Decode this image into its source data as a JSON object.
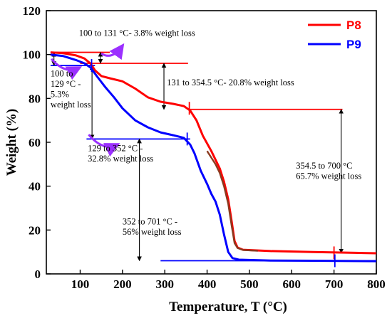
{
  "chart_data": {
    "type": "line",
    "xlabel": "Temperature, T (°C)",
    "ylabel": "Weight (%)",
    "xlim": [
      20,
      800
    ],
    "ylim": [
      0,
      120
    ],
    "xticks": [
      "100",
      "200",
      "300",
      "400",
      "500",
      "600",
      "700",
      "800"
    ],
    "yticks": [
      "0",
      "20",
      "40",
      "60",
      "80",
      "100",
      "120"
    ],
    "grid": false,
    "legend_position": "top-right",
    "series": [
      {
        "name": "P8",
        "color": "#ff0000",
        "points": [
          [
            30,
            101
          ],
          [
            60,
            100.6
          ],
          [
            90,
            99.6
          ],
          [
            110,
            98.2
          ],
          [
            125,
            95.8
          ],
          [
            135,
            92.8
          ],
          [
            150,
            90.2
          ],
          [
            170,
            89.2
          ],
          [
            200,
            87.8
          ],
          [
            230,
            84.5
          ],
          [
            260,
            80.5
          ],
          [
            290,
            78.5
          ],
          [
            320,
            77.5
          ],
          [
            345,
            76.5
          ],
          [
            360,
            74.5
          ],
          [
            375,
            70
          ],
          [
            390,
            63
          ],
          [
            410,
            56
          ],
          [
            430,
            48
          ],
          [
            440,
            42
          ],
          [
            450,
            34
          ],
          [
            458,
            24
          ],
          [
            465,
            15
          ],
          [
            472,
            12
          ],
          [
            485,
            11
          ],
          [
            550,
            10.4
          ],
          [
            650,
            10
          ],
          [
            750,
            9.6
          ],
          [
            800,
            9.4
          ]
        ]
      },
      {
        "name": "P9",
        "color": "#0000ff",
        "points": [
          [
            30,
            100
          ],
          [
            60,
            99.3
          ],
          [
            90,
            97.5
          ],
          [
            110,
            96
          ],
          [
            125,
            94
          ],
          [
            140,
            90
          ],
          [
            160,
            85
          ],
          [
            180,
            80.5
          ],
          [
            200,
            75.5
          ],
          [
            230,
            70
          ],
          [
            260,
            66.8
          ],
          [
            290,
            64.5
          ],
          [
            320,
            63.2
          ],
          [
            345,
            62
          ],
          [
            360,
            59
          ],
          [
            370,
            55
          ],
          [
            385,
            47
          ],
          [
            400,
            41
          ],
          [
            410,
            36.5
          ],
          [
            420,
            33
          ],
          [
            430,
            27
          ],
          [
            440,
            18
          ],
          [
            450,
            10
          ],
          [
            460,
            7.2
          ],
          [
            475,
            6.5
          ],
          [
            550,
            6.1
          ],
          [
            650,
            6
          ],
          [
            800,
            5.8
          ]
        ]
      }
    ],
    "brown_overlay": {
      "color": "#8b3a1f",
      "points": [
        [
          400,
          56
        ],
        [
          410,
          53
        ],
        [
          420,
          50
        ],
        [
          430,
          46
        ],
        [
          440,
          40
        ],
        [
          450,
          32
        ],
        [
          458,
          22
        ],
        [
          465,
          14
        ],
        [
          472,
          11.8
        ],
        [
          485,
          10.9
        ],
        [
          520,
          10.5
        ]
      ]
    },
    "reference_lines": [
      {
        "color": "#ff0000",
        "x1": 30,
        "x2": 170,
        "y": 101
      },
      {
        "color": "#ff0000",
        "x1": 100,
        "x2": 355,
        "y": 96
      },
      {
        "color": "#ff0000",
        "x1": 355,
        "x2": 720,
        "y": 75
      },
      {
        "color": "#0000ff",
        "x1": 30,
        "x2": 135,
        "y": 95
      },
      {
        "color": "#0000ff",
        "x1": 115,
        "x2": 360,
        "y": 61.5
      },
      {
        "color": "#0000ff",
        "x1": 290,
        "x2": 800,
        "y": 6
      }
    ],
    "step_markers": [
      {
        "color": "#ff0000",
        "x": 358,
        "y": 75.5
      },
      {
        "color": "#0000ff",
        "x": 127,
        "y": 95
      },
      {
        "color": "#0000ff",
        "x": 353,
        "y": 61.5
      },
      {
        "color": "#ff0000",
        "x": 700,
        "y": 9.6
      },
      {
        "color": "#0000ff",
        "x": 702,
        "y": 6
      }
    ],
    "dimension_arrows": [
      {
        "x": 38,
        "y1": 95,
        "y2": 101
      },
      {
        "x": 148,
        "y1": 96,
        "y2": 101
      },
      {
        "x": 128,
        "y1": 61.5,
        "y2": 95
      },
      {
        "x": 298,
        "y1": 75,
        "y2": 96
      },
      {
        "x": 240,
        "y1": 6,
        "y2": 61.5
      },
      {
        "x": 717,
        "y1": 9.5,
        "y2": 75
      }
    ],
    "curved_arrows": [
      {
        "from": [
          150,
          100.5
        ],
        "to": [
          200,
          104
        ]
      },
      {
        "from": [
          32,
          98
        ],
        "to": [
          98,
          94
        ]
      },
      {
        "from": [
          120,
          63.5
        ],
        "to": [
          188,
          59
        ]
      }
    ],
    "annotations": [
      {
        "id": "a1",
        "lines": [
          "100 to 131 °C-  3.8% weight loss"
        ],
        "x": 97,
        "y": 108.5
      },
      {
        "id": "a2",
        "lines": [
          "100 to",
          "129 °C -",
          "5.3%",
          "weight loss"
        ],
        "x": 30,
        "y": 90
      },
      {
        "id": "a3",
        "lines": [
          "131 to 354.5 °C- 20.8% weight loss"
        ],
        "x": 305,
        "y": 86
      },
      {
        "id": "a4",
        "lines": [
          "129 to 352 °C -",
          "32.8% weight loss"
        ],
        "x": 118,
        "y": 56
      },
      {
        "id": "a5",
        "lines": [
          "354.5 to 700 °C",
          "65.7% weight loss"
        ],
        "x": 610,
        "y": 48
      },
      {
        "id": "a6",
        "lines": [
          "352 to 701 °C -",
          "56% weight loss"
        ],
        "x": 200,
        "y": 22.5
      }
    ]
  }
}
